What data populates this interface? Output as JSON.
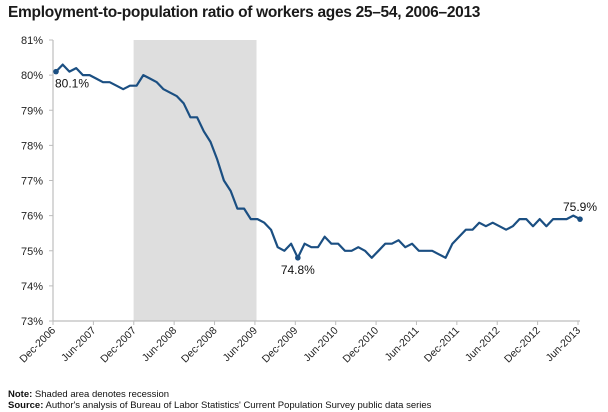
{
  "chart_data": {
    "type": "line",
    "title": "Employment-to-population ratio of workers ages 25–54, 2006–2013",
    "xlabel": "",
    "ylabel": "",
    "ylim": [
      73,
      81
    ],
    "y_ticks": [
      "73%",
      "74%",
      "75%",
      "76%",
      "77%",
      "78%",
      "79%",
      "80%",
      "81%"
    ],
    "x_tick_labels": [
      "Dec-2006",
      "Jun-2007",
      "Dec-2007",
      "Jun-2008",
      "Dec-2008",
      "Jun-2009",
      "Dec-2009",
      "Jun-2010",
      "Dec-2010",
      "Jun-2011",
      "Dec-2011",
      "Jun-2012",
      "Dec-2012",
      "Jun-2013"
    ],
    "grid": false,
    "legend": null,
    "shaded_region": {
      "start": "Dec-2007",
      "end": "Jun-2009",
      "meaning": "recession",
      "color": "#dedede"
    },
    "series": [
      {
        "name": "Employment-to-population ratio, ages 25–54",
        "color": "#1b4f82",
        "start": "Dec-2006",
        "frequency": "monthly",
        "values": [
          80.1,
          80.3,
          80.1,
          80.2,
          80.0,
          80.0,
          79.9,
          79.8,
          79.8,
          79.7,
          79.6,
          79.7,
          79.7,
          80.0,
          79.9,
          79.8,
          79.6,
          79.5,
          79.4,
          79.2,
          78.8,
          78.8,
          78.4,
          78.1,
          77.6,
          77.0,
          76.7,
          76.2,
          76.2,
          75.9,
          75.9,
          75.8,
          75.6,
          75.1,
          75.0,
          75.2,
          74.8,
          75.2,
          75.1,
          75.1,
          75.4,
          75.2,
          75.2,
          75.0,
          75.0,
          75.1,
          75.0,
          74.8,
          75.0,
          75.2,
          75.2,
          75.3,
          75.1,
          75.2,
          75.0,
          75.0,
          75.0,
          74.9,
          74.8,
          75.2,
          75.4,
          75.6,
          75.6,
          75.8,
          75.7,
          75.8,
          75.7,
          75.6,
          75.7,
          75.9,
          75.9,
          75.7,
          75.9,
          75.7,
          75.9,
          75.9,
          75.9,
          76.0,
          75.9
        ]
      }
    ],
    "annotations": [
      {
        "label": "80.1%",
        "at": "Dec-2006",
        "value": 80.1
      },
      {
        "label": "74.8%",
        "at": "Dec-2009",
        "value": 74.8
      },
      {
        "label": "75.9%",
        "at": "Jun-2013",
        "value": 75.9
      }
    ]
  },
  "title": "Employment-to-population ratio of workers ages 25–54, 2006–2013",
  "notes": {
    "note_label": "Note:",
    "note_text": " Shaded area denotes recession",
    "source_label": "Source:",
    "source_text": " Author's analysis of Bureau of Labor Statistics' Current Population Survey public data series"
  }
}
